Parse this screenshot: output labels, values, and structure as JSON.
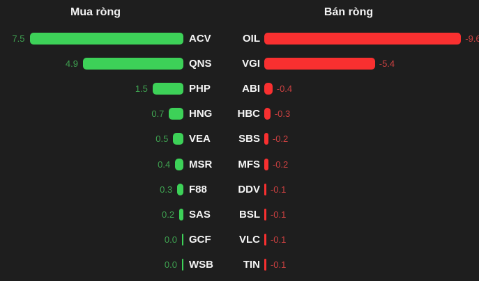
{
  "chart_data": {
    "type": "bar",
    "orientation": "horizontal",
    "grid": false,
    "background_color": "#1e1e1e",
    "panels": [
      {
        "title": "Mua ròng",
        "side": "left",
        "bar_color": "#3dd158",
        "value_label_color": "#3fa351",
        "ticker_color": "#f5f5f5",
        "xlim": [
          0,
          9.6
        ],
        "items": [
          {
            "ticker": "ACV",
            "value": 7.5
          },
          {
            "ticker": "QNS",
            "value": 4.9
          },
          {
            "ticker": "PHP",
            "value": 1.5
          },
          {
            "ticker": "HNG",
            "value": 0.7
          },
          {
            "ticker": "VEA",
            "value": 0.5
          },
          {
            "ticker": "MSR",
            "value": 0.4
          },
          {
            "ticker": "F88",
            "value": 0.3
          },
          {
            "ticker": "SAS",
            "value": 0.2
          },
          {
            "ticker": "GCF",
            "value": 0.0
          },
          {
            "ticker": "WSB",
            "value": 0.0
          }
        ]
      },
      {
        "title": "Bán ròng",
        "side": "right",
        "bar_color": "#f93030",
        "value_label_color": "#cd4141",
        "ticker_color": "#f5f5f5",
        "xlim": [
          -9.6,
          0
        ],
        "items": [
          {
            "ticker": "OIL",
            "value": -9.6
          },
          {
            "ticker": "VGI",
            "value": -5.4
          },
          {
            "ticker": "ABI",
            "value": -0.4
          },
          {
            "ticker": "HBC",
            "value": -0.3
          },
          {
            "ticker": "SBS",
            "value": -0.2
          },
          {
            "ticker": "MFS",
            "value": -0.2
          },
          {
            "ticker": "DDV",
            "value": -0.1
          },
          {
            "ticker": "BSL",
            "value": -0.1
          },
          {
            "ticker": "VLC",
            "value": -0.1
          },
          {
            "ticker": "TIN",
            "value": -0.1
          }
        ]
      }
    ]
  }
}
